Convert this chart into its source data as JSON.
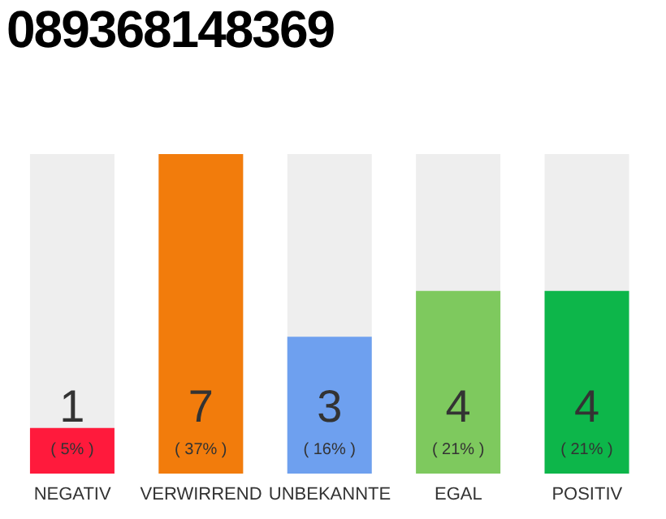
{
  "chart_data": {
    "type": "bar",
    "title": "089368148369",
    "categories": [
      "NEGATIV",
      "VERWIRREND",
      "UNBEKANNTE",
      "EGAL",
      "POSITIV"
    ],
    "values": [
      1,
      7,
      3,
      4,
      4
    ],
    "colors": [
      "#ff1a3c",
      "#f27c0c",
      "#6ea0ef",
      "#7ec95e",
      "#0db64a"
    ],
    "annotations": [
      "( 5% )",
      "( 37% )",
      "( 16% )",
      "( 21% )",
      "( 21% )"
    ],
    "data_labels": true
  }
}
